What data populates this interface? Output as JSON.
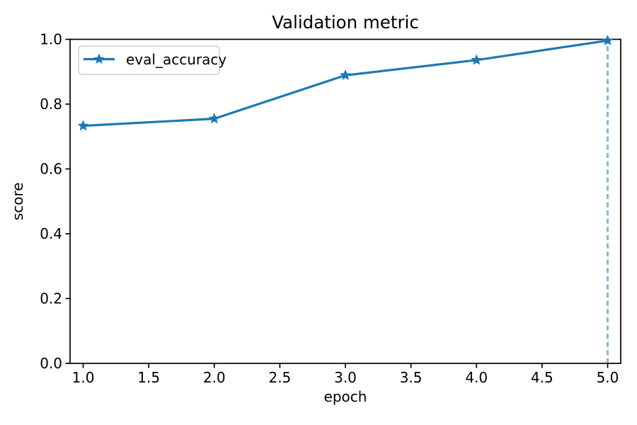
{
  "figure": {
    "background": "#ffffff"
  },
  "chart_data": {
    "type": "line",
    "title": "Validation metric",
    "xlabel": "epoch",
    "ylabel": "score",
    "x": [
      1.0,
      2.0,
      3.0,
      4.0,
      5.0
    ],
    "series": [
      {
        "name": "eval_accuracy",
        "values": [
          0.733,
          0.755,
          0.889,
          0.936,
          0.996
        ],
        "color": "#1f77b4",
        "marker": "star",
        "style": "solid"
      }
    ],
    "vline": {
      "x": 5.0,
      "color": "#7db3d9",
      "style": "dashed"
    },
    "xlim": [
      0.9,
      5.1
    ],
    "ylim": [
      0.0,
      1.0
    ],
    "x_ticks": [
      "1.0",
      "1.5",
      "2.0",
      "2.5",
      "3.0",
      "3.5",
      "4.0",
      "4.5",
      "5.0"
    ],
    "x_tick_values": [
      1.0,
      1.5,
      2.0,
      2.5,
      3.0,
      3.5,
      4.0,
      4.5,
      5.0
    ],
    "y_ticks": [
      "0.0",
      "0.2",
      "0.4",
      "0.6",
      "0.8",
      "1.0"
    ],
    "y_tick_values": [
      0.0,
      0.2,
      0.4,
      0.6,
      0.8,
      1.0
    ],
    "grid": false,
    "legend": {
      "position": "upper left",
      "entries": [
        {
          "label": "eval_accuracy",
          "color": "#1f77b4",
          "marker": "star"
        }
      ]
    },
    "colors": {
      "axis": "#000000",
      "text": "#000000",
      "legend_border": "#cccccc",
      "legend_bg": "#ffffff"
    }
  }
}
